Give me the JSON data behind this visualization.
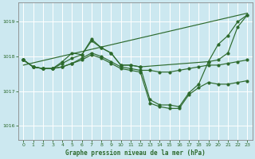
{
  "background_color": "#cce8f0",
  "grid_color": "#ffffff",
  "line_color": "#2d6a2d",
  "title": "Graphe pression niveau de la mer (hPa)",
  "xlim": [
    -0.5,
    23.5
  ],
  "ylim": [
    1015.6,
    1019.55
  ],
  "yticks": [
    1016,
    1017,
    1018,
    1019
  ],
  "xticks": [
    0,
    1,
    2,
    3,
    4,
    5,
    6,
    7,
    8,
    9,
    10,
    11,
    12,
    13,
    14,
    15,
    16,
    17,
    18,
    19,
    20,
    21,
    22,
    23
  ],
  "line_straight": {
    "x": [
      0,
      23
    ],
    "y": [
      1017.75,
      1019.25
    ]
  },
  "line_main": {
    "x": [
      0,
      1,
      2,
      3,
      4,
      5,
      6,
      7,
      8,
      9,
      10,
      11,
      12,
      13,
      14,
      15,
      16,
      17,
      18,
      19,
      20,
      21,
      22,
      23
    ],
    "y": [
      1017.9,
      1017.7,
      1017.65,
      1017.65,
      1017.8,
      1017.95,
      1018.05,
      1018.45,
      1018.25,
      1018.1,
      1017.75,
      1017.75,
      1017.7,
      1016.75,
      1016.6,
      1016.6,
      1016.55,
      1016.95,
      1017.2,
      1017.85,
      1018.35,
      1018.6,
      1019.0,
      1019.2
    ]
  },
  "line_upper": {
    "x": [
      0,
      1,
      2,
      3,
      4,
      5,
      6,
      7,
      8,
      9,
      10,
      11,
      12,
      19,
      20,
      21,
      22,
      23
    ],
    "y": [
      1017.9,
      1017.7,
      1017.65,
      1017.65,
      1017.85,
      1018.1,
      1018.05,
      1018.5,
      1018.25,
      1018.1,
      1017.75,
      1017.75,
      1017.7,
      1017.85,
      1017.9,
      1018.1,
      1018.85,
      1019.2
    ]
  },
  "line_flat": {
    "x": [
      0,
      1,
      2,
      3,
      4,
      5,
      6,
      7,
      8,
      9,
      10,
      11,
      12,
      13,
      14,
      15,
      16,
      17,
      18,
      19,
      20,
      21,
      22,
      23
    ],
    "y": [
      1017.9,
      1017.7,
      1017.65,
      1017.65,
      1017.7,
      1017.8,
      1017.95,
      1018.1,
      1018.0,
      1017.85,
      1017.7,
      1017.65,
      1017.6,
      1017.6,
      1017.55,
      1017.55,
      1017.6,
      1017.65,
      1017.7,
      1017.75,
      1017.75,
      1017.8,
      1017.85,
      1017.9
    ]
  },
  "line_low": {
    "x": [
      0,
      1,
      2,
      3,
      4,
      5,
      6,
      7,
      8,
      9,
      10,
      11,
      12,
      13,
      14,
      15,
      16,
      17,
      18,
      19,
      20,
      21,
      22,
      23
    ],
    "y": [
      1017.9,
      1017.7,
      1017.65,
      1017.65,
      1017.7,
      1017.8,
      1017.9,
      1018.05,
      1017.95,
      1017.8,
      1017.65,
      1017.6,
      1017.55,
      1016.65,
      1016.55,
      1016.5,
      1016.5,
      1016.9,
      1017.1,
      1017.25,
      1017.2,
      1017.2,
      1017.25,
      1017.3
    ]
  }
}
